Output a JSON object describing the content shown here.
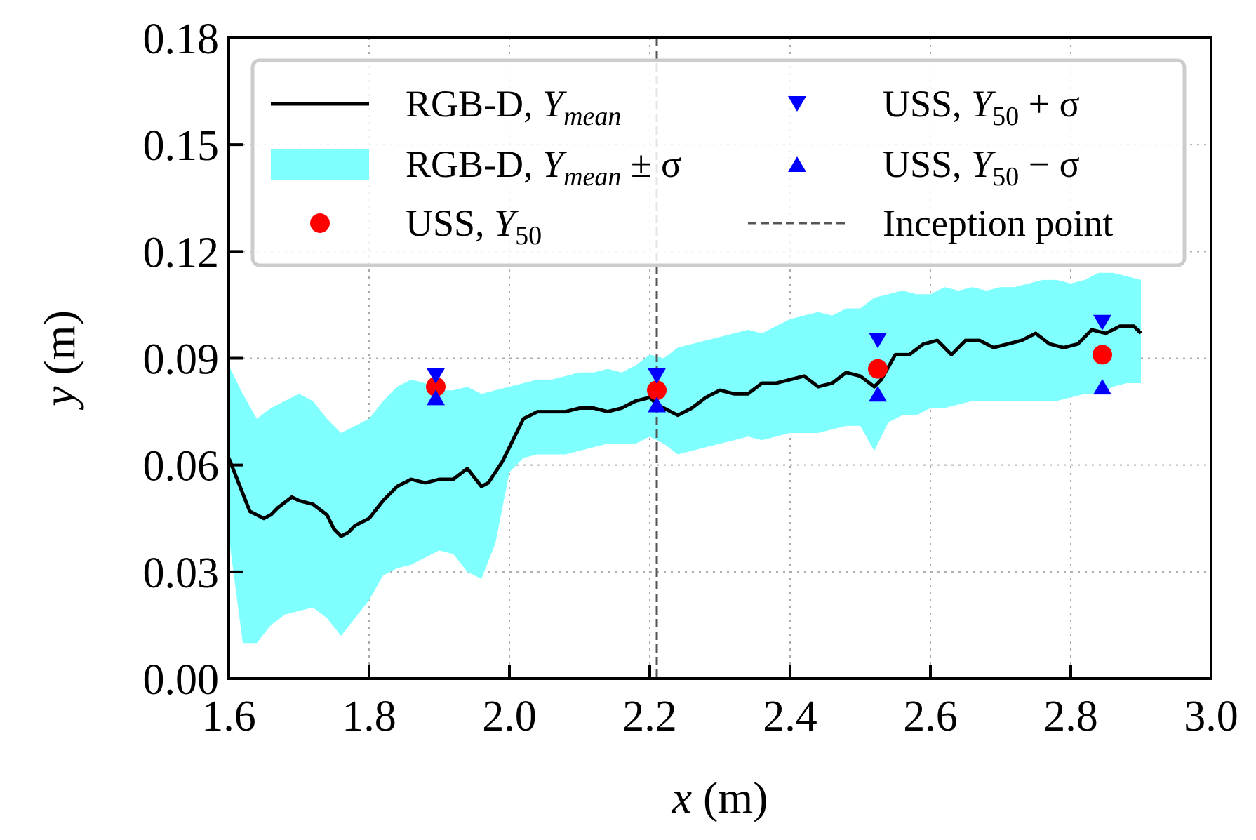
{
  "chart_data": {
    "type": "line",
    "xlabel": "x",
    "xlabel_unit": "(m)",
    "ylabel": "y",
    "ylabel_unit": "(m)",
    "xlim": [
      1.6,
      3.0
    ],
    "ylim": [
      0.0,
      0.18
    ],
    "grid": true,
    "legend_position": "top",
    "x_ticks": [
      1.6,
      1.8,
      2.0,
      2.2,
      2.4,
      2.6,
      2.8,
      3.0
    ],
    "x_tick_labels": [
      "1.6",
      "1.8",
      "2.0",
      "2.2",
      "2.4",
      "2.6",
      "2.8",
      "3.0"
    ],
    "y_ticks": [
      0.0,
      0.03,
      0.06,
      0.09,
      0.12,
      0.15,
      0.18
    ],
    "y_tick_labels": [
      "0.00",
      "0.03",
      "0.06",
      "0.09",
      "0.12",
      "0.15",
      "0.18"
    ],
    "inception_point_x": 2.21,
    "legend": [
      {
        "key": "rgbd_mean",
        "prefix": "RGB-D, ",
        "sym": "Y",
        "sub": "mean",
        "suffix": ""
      },
      {
        "key": "rgbd_band",
        "prefix": "RGB-D, ",
        "sym": "Y",
        "sub": "mean",
        "suffix": " ± σ"
      },
      {
        "key": "uss_y50",
        "prefix": "USS, ",
        "sym": "Y",
        "sub": "50",
        "suffix": ""
      },
      {
        "key": "uss_plus",
        "prefix": "USS, ",
        "sym": "Y",
        "sub": "50",
        "suffix": " + σ"
      },
      {
        "key": "uss_minus",
        "prefix": "USS, ",
        "sym": "Y",
        "sub": "50",
        "suffix": " − σ"
      },
      {
        "key": "inception",
        "prefix": "Inception point",
        "sym": "",
        "sub": "",
        "suffix": ""
      }
    ],
    "series": [
      {
        "name": "RGB-D, Y_mean",
        "color": "#000000",
        "x": [
          1.6,
          1.62,
          1.63,
          1.65,
          1.66,
          1.67,
          1.69,
          1.7,
          1.72,
          1.74,
          1.75,
          1.76,
          1.77,
          1.78,
          1.79,
          1.8,
          1.82,
          1.84,
          1.86,
          1.88,
          1.9,
          1.92,
          1.94,
          1.96,
          1.97,
          1.99,
          2.0,
          2.02,
          2.04,
          2.06,
          2.08,
          2.1,
          2.12,
          2.14,
          2.16,
          2.18,
          2.2,
          2.21,
          2.22,
          2.24,
          2.26,
          2.28,
          2.3,
          2.32,
          2.34,
          2.36,
          2.38,
          2.4,
          2.42,
          2.44,
          2.46,
          2.48,
          2.5,
          2.52,
          2.53,
          2.55,
          2.57,
          2.59,
          2.61,
          2.63,
          2.65,
          2.67,
          2.69,
          2.71,
          2.73,
          2.75,
          2.77,
          2.79,
          2.81,
          2.83,
          2.85,
          2.87,
          2.89,
          2.9
        ],
        "y": [
          0.062,
          0.052,
          0.047,
          0.045,
          0.046,
          0.048,
          0.051,
          0.05,
          0.049,
          0.046,
          0.042,
          0.04,
          0.041,
          0.043,
          0.044,
          0.045,
          0.05,
          0.054,
          0.056,
          0.055,
          0.056,
          0.056,
          0.059,
          0.054,
          0.055,
          0.061,
          0.065,
          0.073,
          0.075,
          0.075,
          0.075,
          0.076,
          0.076,
          0.075,
          0.076,
          0.078,
          0.079,
          0.077,
          0.076,
          0.074,
          0.076,
          0.079,
          0.081,
          0.08,
          0.08,
          0.083,
          0.083,
          0.084,
          0.085,
          0.082,
          0.083,
          0.086,
          0.085,
          0.082,
          0.084,
          0.091,
          0.091,
          0.094,
          0.095,
          0.091,
          0.095,
          0.095,
          0.093,
          0.094,
          0.095,
          0.097,
          0.094,
          0.093,
          0.094,
          0.098,
          0.097,
          0.099,
          0.099,
          0.097
        ]
      },
      {
        "name": "RGB-D, Y_mean ± σ",
        "color": "#80FFFF",
        "x": [
          1.6,
          1.62,
          1.64,
          1.66,
          1.68,
          1.7,
          1.72,
          1.74,
          1.76,
          1.78,
          1.8,
          1.82,
          1.84,
          1.86,
          1.88,
          1.9,
          1.92,
          1.94,
          1.96,
          1.98,
          2.0,
          2.02,
          2.04,
          2.06,
          2.08,
          2.1,
          2.12,
          2.14,
          2.16,
          2.18,
          2.2,
          2.22,
          2.24,
          2.26,
          2.28,
          2.3,
          2.32,
          2.34,
          2.36,
          2.38,
          2.4,
          2.42,
          2.44,
          2.46,
          2.48,
          2.5,
          2.52,
          2.54,
          2.56,
          2.58,
          2.6,
          2.62,
          2.64,
          2.66,
          2.68,
          2.7,
          2.72,
          2.74,
          2.76,
          2.78,
          2.8,
          2.82,
          2.84,
          2.86,
          2.88,
          2.9
        ],
        "upper": [
          0.088,
          0.08,
          0.073,
          0.076,
          0.078,
          0.08,
          0.078,
          0.073,
          0.069,
          0.071,
          0.073,
          0.078,
          0.082,
          0.084,
          0.083,
          0.081,
          0.081,
          0.082,
          0.08,
          0.081,
          0.082,
          0.083,
          0.084,
          0.084,
          0.085,
          0.086,
          0.086,
          0.087,
          0.086,
          0.088,
          0.091,
          0.09,
          0.093,
          0.094,
          0.095,
          0.096,
          0.097,
          0.098,
          0.097,
          0.099,
          0.101,
          0.102,
          0.103,
          0.102,
          0.104,
          0.104,
          0.107,
          0.108,
          0.109,
          0.108,
          0.108,
          0.11,
          0.109,
          0.11,
          0.109,
          0.11,
          0.11,
          0.111,
          0.112,
          0.112,
          0.111,
          0.112,
          0.114,
          0.114,
          0.113,
          0.112
        ],
        "lower": [
          0.04,
          0.01,
          0.01,
          0.015,
          0.018,
          0.019,
          0.02,
          0.017,
          0.012,
          0.017,
          0.022,
          0.029,
          0.031,
          0.032,
          0.034,
          0.036,
          0.035,
          0.03,
          0.028,
          0.038,
          0.058,
          0.062,
          0.063,
          0.063,
          0.063,
          0.064,
          0.065,
          0.066,
          0.066,
          0.066,
          0.068,
          0.066,
          0.063,
          0.064,
          0.065,
          0.066,
          0.067,
          0.068,
          0.067,
          0.068,
          0.069,
          0.069,
          0.069,
          0.07,
          0.071,
          0.071,
          0.064,
          0.072,
          0.074,
          0.074,
          0.076,
          0.076,
          0.077,
          0.078,
          0.078,
          0.078,
          0.078,
          0.078,
          0.078,
          0.078,
          0.079,
          0.08,
          0.08,
          0.082,
          0.083,
          0.083
        ]
      }
    ],
    "uss_points": {
      "x": [
        1.895,
        2.21,
        2.525,
        2.845
      ],
      "y50": [
        0.082,
        0.081,
        0.087,
        0.091
      ],
      "y50_plus_sigma": [
        0.085,
        0.085,
        0.095,
        0.1
      ],
      "y50_minus_sigma": [
        0.079,
        0.077,
        0.08,
        0.082
      ],
      "y50_color": "#FF0000",
      "sigma_color": "#0000FF"
    }
  }
}
